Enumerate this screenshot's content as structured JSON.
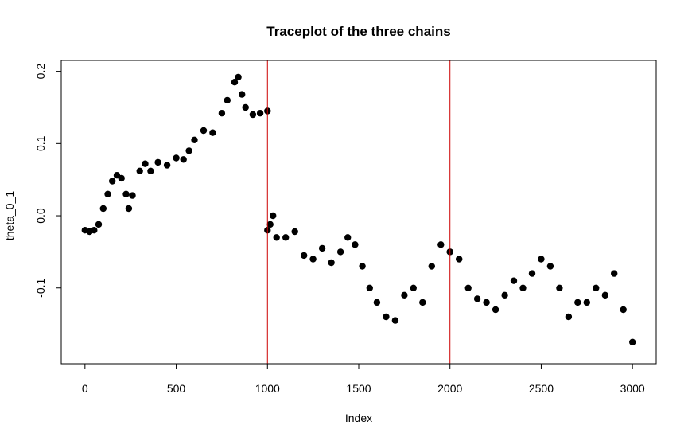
{
  "chart_data": {
    "type": "scatter",
    "title": "Traceplot of the three chains",
    "xlabel": "Index",
    "ylabel": "theta_0_1",
    "xlim": [
      -130,
      3130
    ],
    "ylim": [
      -0.205,
      0.215
    ],
    "x_ticks": [
      0,
      500,
      1000,
      1500,
      2000,
      2500,
      3000
    ],
    "y_ticks": [
      -0.1,
      0.0,
      0.1,
      0.2
    ],
    "x_tick_labels": [
      "0",
      "500",
      "1000",
      "1500",
      "2000",
      "2500",
      "3000"
    ],
    "y_tick_labels": [
      "-0.1",
      "0.0",
      "0.1",
      "0.2"
    ],
    "grid": false,
    "legend": "none",
    "vlines": [
      1000,
      2000
    ],
    "vline_color": "#cc0000",
    "point_color": "#000000",
    "series": [
      {
        "points": [
          [
            0,
            -0.02
          ],
          [
            25,
            -0.022
          ],
          [
            50,
            -0.02
          ],
          [
            75,
            -0.012
          ],
          [
            100,
            0.01
          ],
          [
            125,
            0.03
          ],
          [
            150,
            0.048
          ],
          [
            175,
            0.056
          ],
          [
            200,
            0.052
          ],
          [
            225,
            0.03
          ],
          [
            240,
            0.01
          ],
          [
            260,
            0.028
          ],
          [
            300,
            0.062
          ],
          [
            330,
            0.072
          ],
          [
            360,
            0.062
          ],
          [
            400,
            0.074
          ],
          [
            450,
            0.07
          ],
          [
            500,
            0.08
          ],
          [
            540,
            0.078
          ],
          [
            570,
            0.09
          ],
          [
            600,
            0.105
          ],
          [
            650,
            0.118
          ],
          [
            700,
            0.115
          ],
          [
            750,
            0.142
          ],
          [
            780,
            0.16
          ],
          [
            820,
            0.185
          ],
          [
            840,
            0.192
          ],
          [
            860,
            0.168
          ],
          [
            880,
            0.15
          ],
          [
            920,
            0.14
          ],
          [
            960,
            0.142
          ],
          [
            1000,
            0.145
          ]
        ]
      },
      {
        "points": [
          [
            1000,
            -0.02
          ],
          [
            1015,
            -0.012
          ],
          [
            1030,
            0.0
          ],
          [
            1050,
            -0.03
          ],
          [
            1100,
            -0.03
          ],
          [
            1150,
            -0.022
          ],
          [
            1200,
            -0.055
          ],
          [
            1250,
            -0.06
          ],
          [
            1300,
            -0.045
          ],
          [
            1350,
            -0.065
          ],
          [
            1400,
            -0.05
          ],
          [
            1440,
            -0.03
          ],
          [
            1480,
            -0.04
          ],
          [
            1520,
            -0.07
          ],
          [
            1560,
            -0.1
          ],
          [
            1600,
            -0.12
          ],
          [
            1650,
            -0.14
          ],
          [
            1700,
            -0.145
          ],
          [
            1750,
            -0.11
          ],
          [
            1800,
            -0.1
          ],
          [
            1850,
            -0.12
          ],
          [
            1900,
            -0.07
          ],
          [
            1950,
            -0.04
          ],
          [
            2000,
            -0.05
          ]
        ]
      },
      {
        "points": [
          [
            2000,
            -0.05
          ],
          [
            2050,
            -0.06
          ],
          [
            2100,
            -0.1
          ],
          [
            2150,
            -0.115
          ],
          [
            2200,
            -0.12
          ],
          [
            2250,
            -0.13
          ],
          [
            2300,
            -0.11
          ],
          [
            2350,
            -0.09
          ],
          [
            2400,
            -0.1
          ],
          [
            2450,
            -0.08
          ],
          [
            2500,
            -0.06
          ],
          [
            2550,
            -0.07
          ],
          [
            2600,
            -0.1
          ],
          [
            2650,
            -0.14
          ],
          [
            2700,
            -0.12
          ],
          [
            2750,
            -0.12
          ],
          [
            2800,
            -0.1
          ],
          [
            2850,
            -0.11
          ],
          [
            2900,
            -0.08
          ],
          [
            2950,
            -0.13
          ],
          [
            3000,
            -0.175
          ]
        ]
      }
    ]
  }
}
